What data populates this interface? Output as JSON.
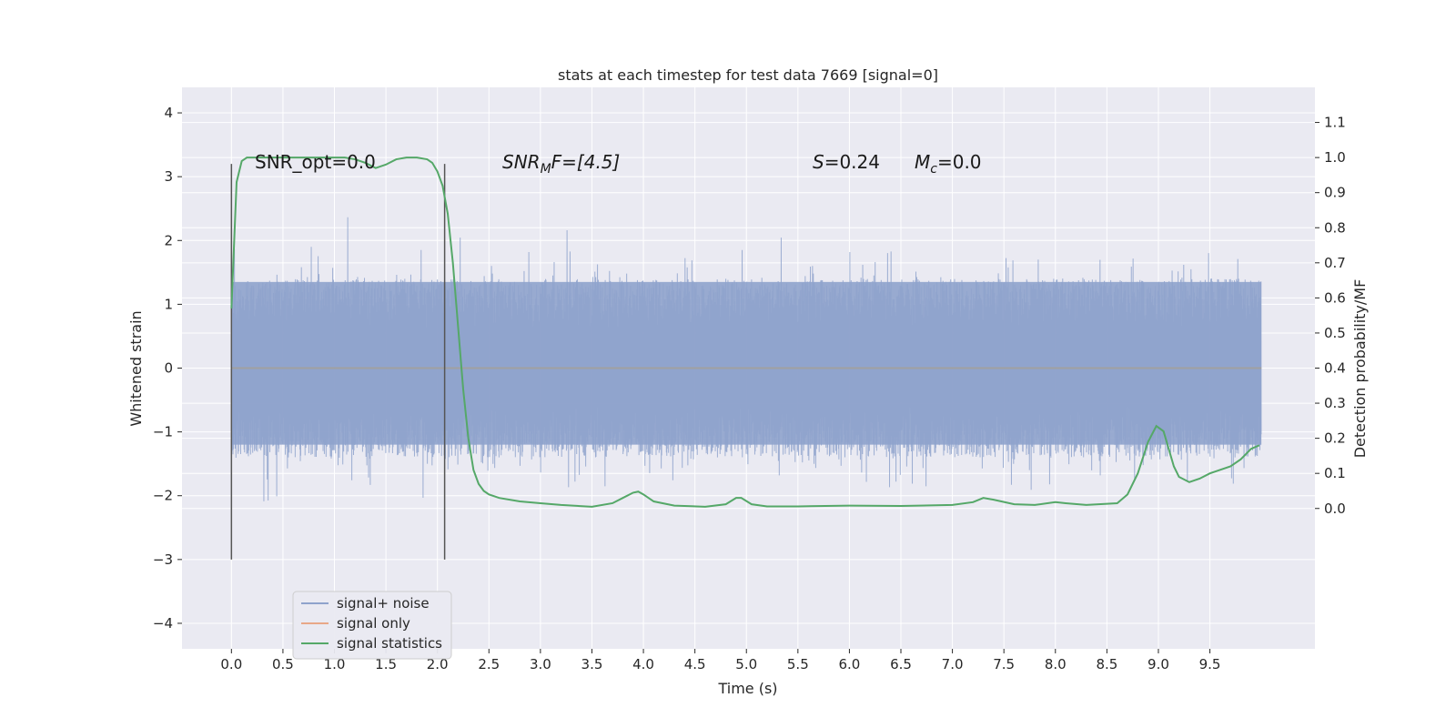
{
  "chart_data": {
    "type": "line",
    "title": "stats at each timestep for test data 7669 [signal=0]",
    "xlabel": "Time (s)",
    "ylabel": "Whitened strain",
    "ylabel_right": "Detection probability/MF",
    "xlim": [
      -0.48,
      10.52
    ],
    "ylim": [
      -4.4,
      4.4
    ],
    "ylim_right": [
      -0.4,
      1.2
    ],
    "x_ticks": [
      "0.0",
      "0.5",
      "1.0",
      "1.5",
      "2.0",
      "2.5",
      "3.0",
      "3.5",
      "4.0",
      "4.5",
      "5.0",
      "5.5",
      "6.0",
      "6.5",
      "7.0",
      "7.5",
      "8.0",
      "8.5",
      "9.0",
      "9.5"
    ],
    "y_ticks": [
      "4",
      "3",
      "2",
      "1",
      "0",
      "−1",
      "−2",
      "−3",
      "−4"
    ],
    "y_ticks_right": [
      "1.1",
      "1.0",
      "0.9",
      "0.8",
      "0.7",
      "0.6",
      "0.5",
      "0.4",
      "0.3",
      "0.2",
      "0.1",
      "0.0"
    ],
    "grid": true,
    "legend_position": "lower-left",
    "colors": {
      "background": "#eaeaf2",
      "noise": "#8fa3cc",
      "signal": "#dd8452",
      "stats": "#55a868",
      "markers": "#555555"
    },
    "annotations": {
      "snr_opt": "SNR_opt=0.0",
      "snr_mf_prefix": "SNR",
      "snr_mf_sub": "M",
      "snr_mf_suffix": "F=[4.5]",
      "s_label": "S",
      "s_value": "=0.24",
      "mc_label": "M",
      "mc_sub": "c",
      "mc_value": "=0.0"
    },
    "markers": [
      0.0,
      2.07
    ],
    "series": [
      {
        "name": "signal+ noise",
        "axis": "left",
        "description_amplitude": 1.0
      },
      {
        "name": "signal only",
        "axis": "left",
        "x": [
          0.0,
          10.0
        ],
        "y": [
          0.0,
          0.0
        ]
      },
      {
        "name": "signal statistics",
        "axis": "right",
        "x": [
          0.0,
          0.05,
          0.1,
          0.15,
          0.2,
          0.3,
          0.5,
          0.8,
          1.0,
          1.1,
          1.2,
          1.3,
          1.4,
          1.5,
          1.6,
          1.7,
          1.8,
          1.9,
          1.95,
          2.0,
          2.05,
          2.1,
          2.15,
          2.2,
          2.25,
          2.3,
          2.35,
          2.4,
          2.45,
          2.5,
          2.6,
          2.8,
          3.0,
          3.2,
          3.5,
          3.7,
          3.8,
          3.9,
          3.95,
          4.0,
          4.1,
          4.3,
          4.6,
          4.8,
          4.9,
          4.95,
          5.05,
          5.2,
          5.5,
          6.0,
          6.5,
          7.0,
          7.2,
          7.3,
          7.4,
          7.6,
          7.8,
          8.0,
          8.1,
          8.3,
          8.6,
          8.7,
          8.8,
          8.9,
          8.98,
          9.05,
          9.1,
          9.15,
          9.2,
          9.3,
          9.4,
          9.5,
          9.6,
          9.7,
          9.8,
          9.9,
          9.98
        ],
        "y": [
          0.57,
          0.93,
          0.99,
          1.0,
          1.0,
          1.0,
          1.0,
          1.0,
          1.0,
          1.0,
          0.995,
          0.985,
          0.97,
          0.98,
          0.995,
          1.0,
          1.0,
          0.995,
          0.985,
          0.96,
          0.92,
          0.84,
          0.7,
          0.52,
          0.34,
          0.2,
          0.11,
          0.07,
          0.05,
          0.04,
          0.03,
          0.02,
          0.015,
          0.01,
          0.005,
          0.015,
          0.03,
          0.045,
          0.048,
          0.04,
          0.02,
          0.008,
          0.005,
          0.012,
          0.03,
          0.03,
          0.012,
          0.006,
          0.006,
          0.008,
          0.007,
          0.01,
          0.018,
          0.03,
          0.025,
          0.012,
          0.01,
          0.018,
          0.015,
          0.01,
          0.015,
          0.04,
          0.1,
          0.19,
          0.235,
          0.22,
          0.17,
          0.12,
          0.09,
          0.075,
          0.085,
          0.1,
          0.11,
          0.12,
          0.14,
          0.17,
          0.18
        ]
      }
    ]
  }
}
